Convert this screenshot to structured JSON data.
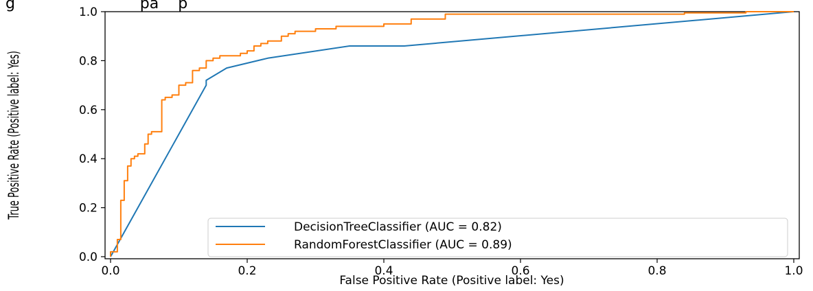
{
  "chart_data": {
    "type": "line",
    "title": "",
    "caption_fragment": "g                          pa    p",
    "xlabel": "False Positive Rate (Positive label: Yes)",
    "ylabel": "True Positive Rate (Positive label: Yes)",
    "xlim": [
      0.0,
      1.0
    ],
    "ylim": [
      0.0,
      1.0
    ],
    "xticks": [
      0.0,
      0.2,
      0.4,
      0.6,
      0.8,
      1.0
    ],
    "yticks": [
      0.0,
      0.2,
      0.4,
      0.6,
      0.8,
      1.0
    ],
    "xtick_labels": [
      "0.0",
      "0.2",
      "0.4",
      "0.6",
      "0.8",
      "1.0"
    ],
    "ytick_labels": [
      "0.0",
      "0.2",
      "0.4",
      "0.6",
      "0.8",
      "1.0"
    ],
    "grid": false,
    "legend_position": "lower-right",
    "series": [
      {
        "name": "DecisionTreeClassifier (AUC = 0.82)",
        "color": "#1f77b4",
        "x": [
          0.0,
          0.14,
          0.14,
          0.17,
          0.23,
          0.35,
          0.43,
          1.0
        ],
        "y": [
          0.0,
          0.7,
          0.72,
          0.77,
          0.81,
          0.86,
          0.86,
          1.0
        ]
      },
      {
        "name": "RandomForestClassifier (AUC = 0.89)",
        "color": "#ff7f0e",
        "x": [
          0.0,
          0.0,
          0.01,
          0.01,
          0.015,
          0.015,
          0.02,
          0.02,
          0.025,
          0.025,
          0.03,
          0.03,
          0.035,
          0.035,
          0.04,
          0.04,
          0.05,
          0.05,
          0.055,
          0.055,
          0.06,
          0.06,
          0.075,
          0.075,
          0.08,
          0.08,
          0.09,
          0.09,
          0.1,
          0.1,
          0.11,
          0.11,
          0.12,
          0.12,
          0.13,
          0.13,
          0.14,
          0.14,
          0.15,
          0.15,
          0.16,
          0.16,
          0.19,
          0.19,
          0.2,
          0.2,
          0.21,
          0.21,
          0.22,
          0.22,
          0.23,
          0.23,
          0.25,
          0.25,
          0.26,
          0.26,
          0.27,
          0.27,
          0.3,
          0.3,
          0.33,
          0.33,
          0.4,
          0.4,
          0.44,
          0.44,
          0.49,
          0.49,
          0.84,
          0.84,
          0.93,
          0.93,
          1.0
        ],
        "y": [
          0.0,
          0.02,
          0.02,
          0.07,
          0.07,
          0.23,
          0.23,
          0.31,
          0.31,
          0.37,
          0.37,
          0.4,
          0.4,
          0.41,
          0.41,
          0.42,
          0.42,
          0.46,
          0.46,
          0.5,
          0.5,
          0.51,
          0.51,
          0.64,
          0.64,
          0.65,
          0.65,
          0.66,
          0.66,
          0.7,
          0.7,
          0.71,
          0.71,
          0.76,
          0.76,
          0.77,
          0.77,
          0.8,
          0.8,
          0.81,
          0.81,
          0.82,
          0.82,
          0.83,
          0.83,
          0.84,
          0.84,
          0.86,
          0.86,
          0.87,
          0.87,
          0.88,
          0.88,
          0.9,
          0.9,
          0.91,
          0.91,
          0.92,
          0.92,
          0.93,
          0.93,
          0.94,
          0.94,
          0.95,
          0.95,
          0.97,
          0.97,
          0.99,
          0.99,
          0.995,
          0.995,
          1.0,
          1.0
        ]
      }
    ]
  }
}
